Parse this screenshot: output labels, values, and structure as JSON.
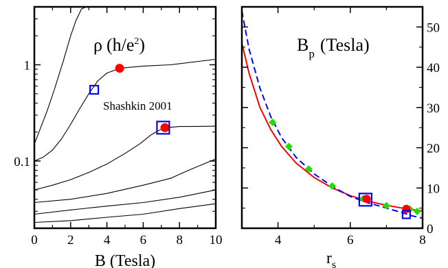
{
  "chart_data": [
    {
      "type": "line",
      "xlabel": "B (Tesla)",
      "ylabel": "",
      "xlim": [
        0,
        10
      ],
      "ylim": [
        0.02,
        4
      ],
      "yscale": "log",
      "grid": false,
      "xticks": [
        "0",
        "2",
        "4",
        "6",
        "8",
        "10"
      ],
      "yticks": [
        {
          "value": 0.1,
          "label": "0.1"
        },
        {
          "value": 1,
          "label": "1"
        }
      ],
      "annotation_symbol": "ρ",
      "annotation_units": "(h/e",
      "annotation_sup": "2",
      "annotation_close": ")",
      "annotation_source": "Shashkin 2001",
      "curve_color": "#000000",
      "series": [
        {
          "x": [
            0,
            0.3,
            0.7,
            1.1,
            1.6,
            2.0,
            2.3,
            2.6,
            2.85
          ],
          "y": [
            0.15,
            0.21,
            0.33,
            0.55,
            1.1,
            2.0,
            2.9,
            3.8,
            4.0
          ]
        },
        {
          "x": [
            0,
            0.5,
            1.0,
            1.5,
            2.0,
            2.5,
            3.0,
            3.5,
            4.0,
            4.7,
            6.0,
            7.5,
            10.0
          ],
          "y": [
            0.1,
            0.11,
            0.13,
            0.17,
            0.24,
            0.35,
            0.5,
            0.68,
            0.82,
            0.92,
            0.97,
            1.0,
            1.14
          ]
        },
        {
          "x": [
            0,
            1.0,
            2.0,
            3.0,
            4.0,
            5.0,
            5.8,
            6.4,
            6.8,
            7.2,
            8.0,
            9.0,
            10.0
          ],
          "y": [
            0.05,
            0.056,
            0.064,
            0.076,
            0.093,
            0.12,
            0.15,
            0.185,
            0.205,
            0.222,
            0.228,
            0.229,
            0.23
          ]
        },
        {
          "x": [
            0,
            2.0,
            4.0,
            6.0,
            7.5,
            8.5,
            9.5,
            10.0
          ],
          "y": [
            0.037,
            0.04,
            0.046,
            0.056,
            0.066,
            0.08,
            0.096,
            0.105
          ]
        },
        {
          "x": [
            0,
            2.0,
            4.0,
            6.0,
            8.0,
            10.0
          ],
          "y": [
            0.028,
            0.031,
            0.034,
            0.037,
            0.042,
            0.05
          ]
        },
        {
          "x": [
            0,
            2.0,
            4.0,
            6.0,
            8.0,
            10.0
          ],
          "y": [
            0.023,
            0.024,
            0.026,
            0.028,
            0.032,
            0.036
          ]
        }
      ],
      "markers": [
        {
          "shape": "circle",
          "color": "#ff0000",
          "x": 4.7,
          "y": 0.92
        },
        {
          "shape": "circle",
          "color": "#ff0000",
          "x": 7.2,
          "y": 0.222
        },
        {
          "shape": "square",
          "color": "#0000ff",
          "x": 3.3,
          "y": 0.55,
          "size": "small"
        },
        {
          "shape": "square",
          "color": "#0000ff",
          "x": 7.1,
          "y": 0.222,
          "size": "large"
        }
      ]
    },
    {
      "type": "line",
      "xlabel": "r",
      "xlabel_sub": "s",
      "ylabel": "",
      "xlim": [
        3,
        8
      ],
      "ylim": [
        0,
        55
      ],
      "grid": false,
      "xticks": [
        "4",
        "6",
        "8"
      ],
      "yticks": [
        "0",
        "10",
        "20",
        "30",
        "40",
        "50"
      ],
      "annotation_main": "B",
      "annotation_sub": "p",
      "annotation_units": "(Tesla)",
      "series": [
        {
          "style": "solid",
          "color": "#ff0000",
          "x": [
            3.0,
            3.2,
            3.5,
            3.8,
            4.1,
            4.5,
            5.0,
            5.5,
            6.0,
            6.5,
            7.0,
            7.5,
            8.0
          ],
          "y": [
            46,
            38.5,
            30,
            24.5,
            20.3,
            16.2,
            12.6,
            10.0,
            8.1,
            6.7,
            5.7,
            4.9,
            4.3
          ]
        },
        {
          "style": "dashed",
          "color": "#0000ff",
          "x": [
            3.0,
            3.2,
            3.5,
            3.8,
            4.1,
            4.5,
            5.0,
            5.5,
            6.0,
            6.5,
            7.0,
            7.5,
            7.7,
            8.0
          ],
          "y": [
            54,
            44.5,
            34.8,
            27.7,
            22.5,
            17.6,
            13.5,
            10.4,
            7.9,
            6.3,
            5.0,
            3.7,
            3.1,
            2.5
          ]
        }
      ],
      "green_points": {
        "color": "#22dd00",
        "x": [
          3.85,
          4.3,
          4.85,
          5.5,
          6.35,
          7.0,
          7.65,
          7.85
        ],
        "y": [
          26.3,
          20.3,
          14.7,
          10.5,
          7.3,
          5.6,
          4.7,
          4.2
        ]
      },
      "markers": [
        {
          "shape": "circle",
          "color": "#ff0000",
          "x": 6.45,
          "y": 7.3
        },
        {
          "shape": "circle",
          "color": "#ff0000",
          "x": 7.55,
          "y": 4.8
        },
        {
          "shape": "square",
          "color": "#0000ff",
          "x": 6.42,
          "y": 7.1,
          "size": "large"
        },
        {
          "shape": "square",
          "color": "#0000ff",
          "x": 7.55,
          "y": 3.4,
          "size": "small"
        }
      ]
    }
  ]
}
